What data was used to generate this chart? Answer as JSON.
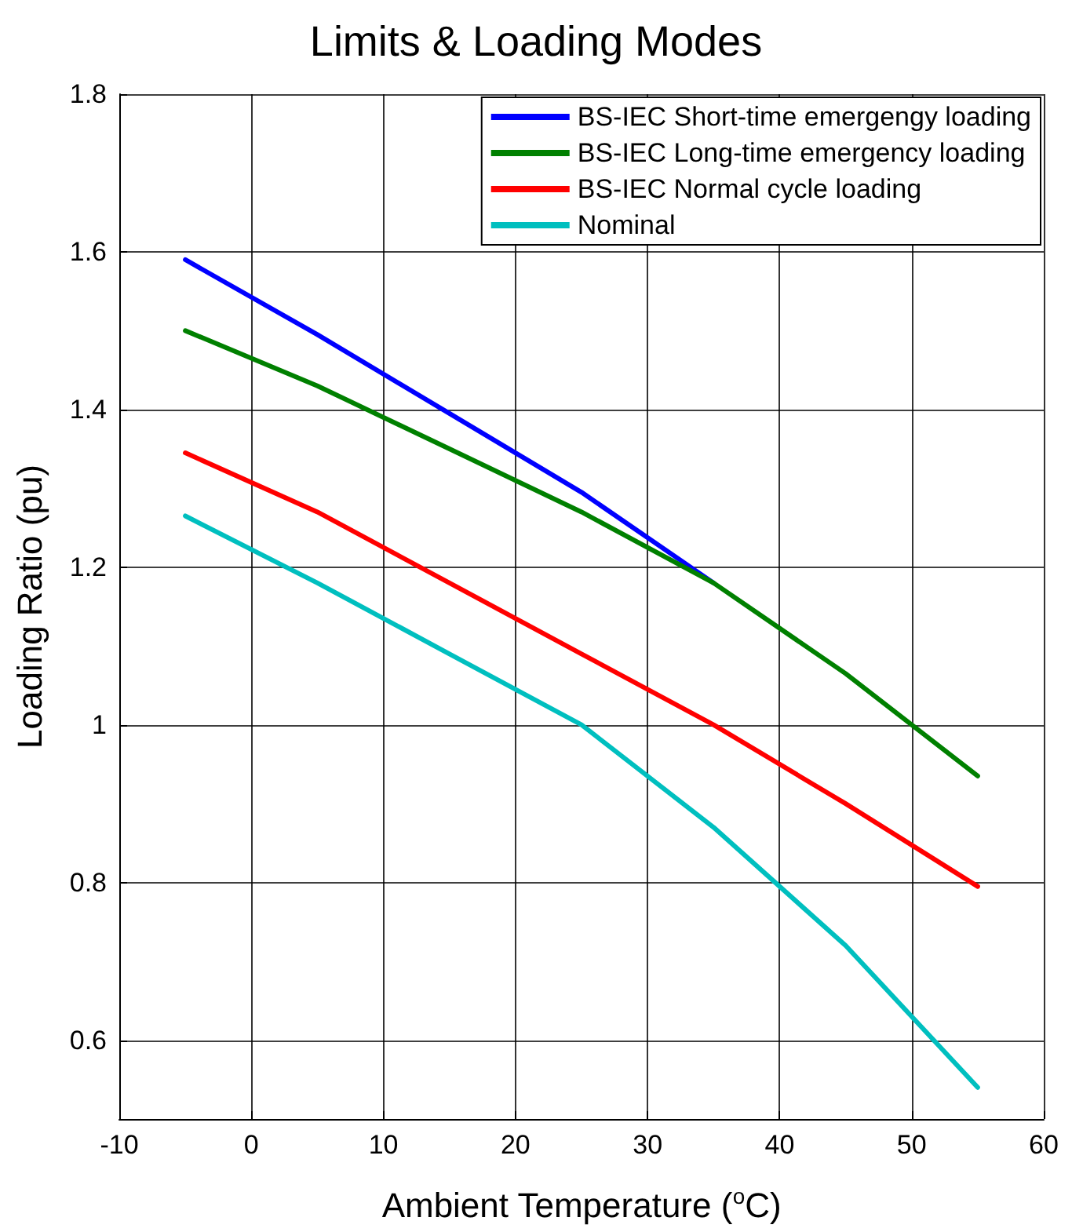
{
  "chart_data": {
    "type": "line",
    "title": "Limits & Loading Modes",
    "xlabel": "Ambient Temperature ($^{o}$C)",
    "ylabel": "Loading Ratio (pu)",
    "xlim": [
      -10,
      60
    ],
    "xticks": [
      -10,
      0,
      10,
      20,
      30,
      40,
      50,
      60
    ],
    "ylim": [
      0.5,
      1.8
    ],
    "yticks": [
      0.6,
      0.8,
      1,
      1.2,
      1.4,
      1.6,
      1.8
    ],
    "grid": true,
    "legend": "top right",
    "marker": "none",
    "line_style": "solid",
    "x": [
      -5,
      5,
      15,
      25,
      35,
      45,
      55
    ],
    "series": [
      {
        "name": "BS-IEC Short-time emergengy loading",
        "color": "#0000ff",
        "values": [
          1.59,
          1.495,
          1.395,
          1.295,
          1.18,
          null,
          null
        ]
      },
      {
        "name": "BS-IEC Long-time emergency loading",
        "color": "#008000",
        "values": [
          1.5,
          1.43,
          1.35,
          1.27,
          1.18,
          1.065,
          0.935
        ]
      },
      {
        "name": "BS-IEC Normal cycle loading",
        "color": "#ff0000",
        "values": [
          1.345,
          1.27,
          1.18,
          1.09,
          1.0,
          0.9,
          0.795
        ]
      },
      {
        "name": "Nominal",
        "color": "#00bfbf",
        "values": [
          1.265,
          1.18,
          1.09,
          1.0,
          0.87,
          0.72,
          0.54
        ]
      }
    ]
  }
}
